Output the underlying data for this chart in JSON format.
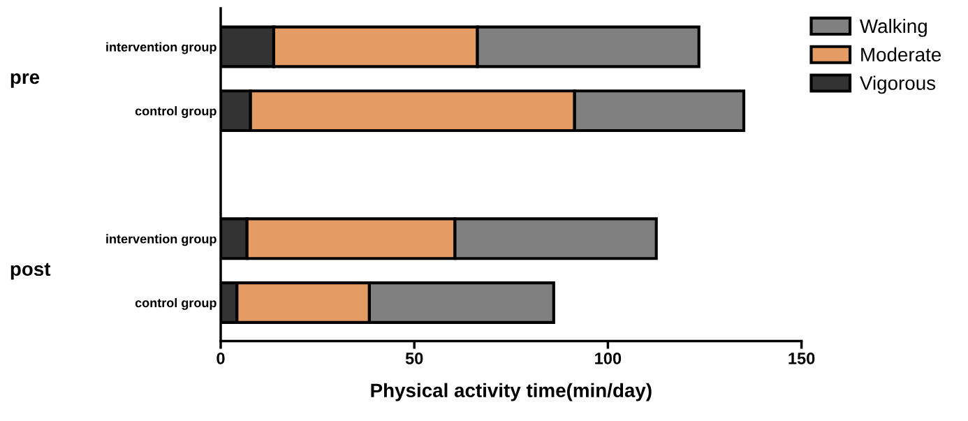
{
  "chart_data": {
    "type": "bar",
    "orientation": "horizontal",
    "stacked": true,
    "xlabel": "Physical activity time(min/day)",
    "categories": [
      "intervention group",
      "control group",
      null,
      "intervention group",
      "control group"
    ],
    "series": [
      {
        "name": "Vigorous",
        "color": "#333333",
        "values": [
          13.7,
          7.7,
          null,
          6.8,
          4.2
        ]
      },
      {
        "name": "Moderate",
        "color": "#e49c64",
        "values": [
          52.6,
          83.7,
          null,
          53.7,
          34.2
        ]
      },
      {
        "name": "Walking",
        "color": "#808080",
        "values": [
          57.2,
          43.7,
          null,
          52.0,
          47.6
        ]
      }
    ],
    "xlim": [
      0,
      150
    ],
    "xticks": [
      0,
      50,
      100,
      150
    ],
    "annotations": [
      "pre",
      "post"
    ],
    "legend": "top right",
    "grid": false
  }
}
